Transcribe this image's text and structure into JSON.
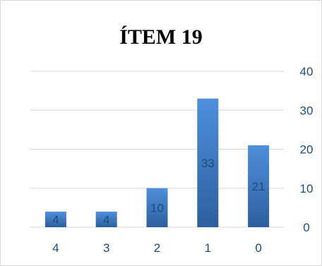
{
  "chart_data": {
    "type": "bar",
    "title": "ÍTEM 19",
    "xlabel": "",
    "ylabel": "",
    "categories": [
      "4",
      "3",
      "2",
      "1",
      "0"
    ],
    "values": [
      4,
      4,
      10,
      33,
      21
    ],
    "data_labels": [
      "4",
      "4",
      "10",
      "33",
      "21"
    ],
    "ylim": [
      0,
      40
    ],
    "y_ticks": [
      0,
      10,
      20,
      30,
      40
    ],
    "y_tick_labels": [
      "0",
      "10",
      "20",
      "30",
      "40"
    ],
    "y_axis_side": "right",
    "grid": true,
    "legend": "none",
    "colors": {
      "bar_top": "#4f8fdc",
      "bar_bottom": "#2d5f9e",
      "grid": "#d9d9d9",
      "text": "#1f4e79",
      "frame": "#d9d9d9"
    }
  }
}
